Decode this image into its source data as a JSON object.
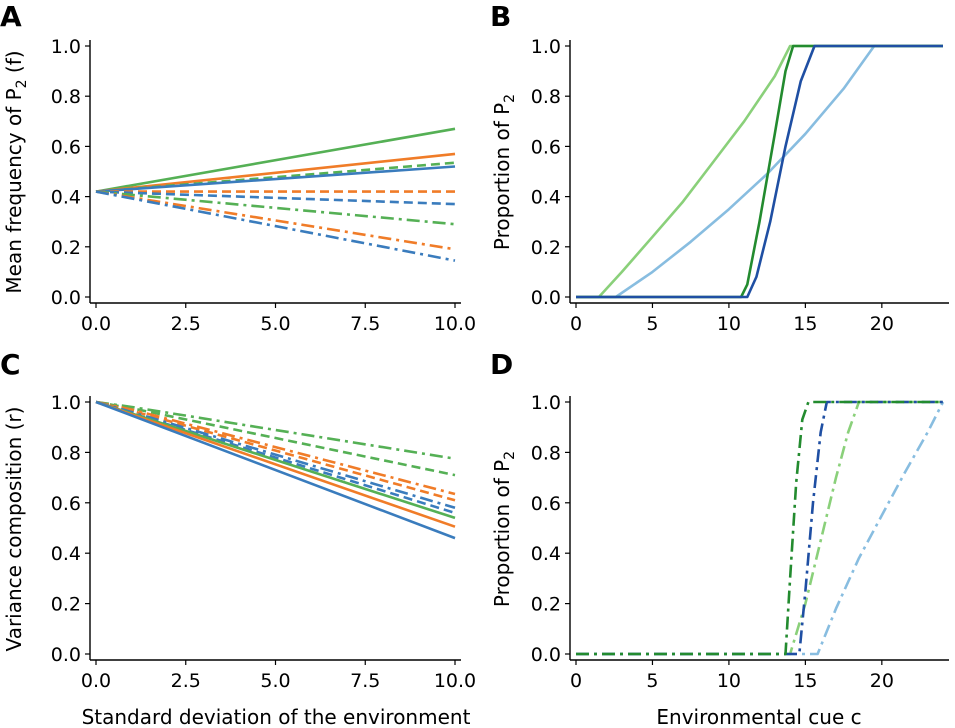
{
  "colors": {
    "blue": "#3a7cbd",
    "orange": "#f07c28",
    "green": "#55b055",
    "dark_blue": "#1f4fa3",
    "dark_green": "#238b2f",
    "light_green": "#8ad07a",
    "light_blue": "#88bde0"
  },
  "chart_data": [
    {
      "panel": "A",
      "type": "line",
      "ylabel": "Mean frequency of P",
      "ylabel_sub": "2",
      "ylabel_tail": " (f)",
      "xlabel": "",
      "xlim": [
        0,
        10
      ],
      "ylim": [
        0,
        1
      ],
      "xticks": [
        "0.0",
        "2.5",
        "5.0",
        "7.5",
        "10.0"
      ],
      "yticks": [
        "0.0",
        "0.2",
        "0.4",
        "0.6",
        "0.8",
        "1.0"
      ],
      "series": [
        {
          "name": "green solid",
          "color": "green",
          "dash": "solid",
          "x": [
            0,
            10
          ],
          "y": [
            0.42,
            0.67
          ]
        },
        {
          "name": "orange solid",
          "color": "orange",
          "dash": "solid",
          "x": [
            0,
            10
          ],
          "y": [
            0.42,
            0.57
          ]
        },
        {
          "name": "green dashed",
          "color": "green",
          "dash": "dashed",
          "x": [
            0,
            10
          ],
          "y": [
            0.42,
            0.535
          ]
        },
        {
          "name": "blue solid",
          "color": "blue",
          "dash": "solid",
          "x": [
            0,
            10
          ],
          "y": [
            0.42,
            0.52
          ]
        },
        {
          "name": "orange dashed",
          "color": "orange",
          "dash": "dashed",
          "x": [
            0,
            10
          ],
          "y": [
            0.42,
            0.42
          ]
        },
        {
          "name": "blue dashed",
          "color": "blue",
          "dash": "dashed",
          "x": [
            0,
            10
          ],
          "y": [
            0.42,
            0.37
          ]
        },
        {
          "name": "green dashdot",
          "color": "green",
          "dash": "dashdot",
          "x": [
            0,
            10
          ],
          "y": [
            0.42,
            0.29
          ]
        },
        {
          "name": "orange dashdot",
          "color": "orange",
          "dash": "dashdot",
          "x": [
            0,
            10
          ],
          "y": [
            0.42,
            0.19
          ]
        },
        {
          "name": "blue dashdot",
          "color": "blue",
          "dash": "dashdot",
          "x": [
            0,
            10
          ],
          "y": [
            0.42,
            0.145
          ]
        }
      ]
    },
    {
      "panel": "B",
      "type": "line",
      "ylabel": "Proportion of P",
      "ylabel_sub": "2",
      "ylabel_tail": "",
      "xlabel": "",
      "xlim": [
        0,
        24
      ],
      "ylim": [
        0,
        1
      ],
      "xticks": [
        "0",
        "5",
        "10",
        "15",
        "20"
      ],
      "yticks": [
        "0.0",
        "0.2",
        "0.4",
        "0.6",
        "0.8",
        "1.0"
      ],
      "series": [
        {
          "name": "light blue solid",
          "color": "light_blue",
          "dash": "solid",
          "x": [
            0,
            2.6,
            5,
            7.5,
            10,
            12.5,
            15,
            17.5,
            19.5,
            24
          ],
          "y": [
            0,
            0,
            0.1,
            0.22,
            0.35,
            0.49,
            0.65,
            0.83,
            1,
            1
          ]
        },
        {
          "name": "light green solid",
          "color": "light_green",
          "dash": "solid",
          "x": [
            0,
            1.5,
            3,
            5,
            7,
            9,
            11,
            13,
            14,
            24
          ],
          "y": [
            0,
            0,
            0.1,
            0.24,
            0.38,
            0.54,
            0.7,
            0.88,
            1,
            1
          ]
        },
        {
          "name": "dark green solid",
          "color": "dark_green",
          "dash": "solid",
          "x": [
            0,
            10.8,
            11.2,
            12,
            13,
            13.7,
            14.2,
            24
          ],
          "y": [
            0,
            0,
            0.05,
            0.3,
            0.65,
            0.9,
            1,
            1
          ]
        },
        {
          "name": "dark blue solid",
          "color": "dark_blue",
          "dash": "solid",
          "x": [
            0,
            11.2,
            11.8,
            12.7,
            13.7,
            14.7,
            15.6,
            24
          ],
          "y": [
            0,
            0,
            0.08,
            0.3,
            0.6,
            0.86,
            1,
            1
          ]
        }
      ]
    },
    {
      "panel": "C",
      "type": "line",
      "ylabel": "Variance composition (r)",
      "ylabel_sub": "",
      "ylabel_tail": "",
      "xlabel": "Standard deviation of the environment",
      "xlim": [
        0,
        10
      ],
      "ylim": [
        0,
        1
      ],
      "xticks": [
        "0.0",
        "2.5",
        "5.0",
        "7.5",
        "10.0"
      ],
      "yticks": [
        "0.0",
        "0.2",
        "0.4",
        "0.6",
        "0.8",
        "1.0"
      ],
      "series": [
        {
          "name": "green dashdot",
          "color": "green",
          "dash": "dashdot",
          "x": [
            0,
            1,
            10
          ],
          "y": [
            1,
            0.98,
            0.775
          ]
        },
        {
          "name": "green dashed",
          "color": "green",
          "dash": "dashed",
          "x": [
            0,
            1,
            10
          ],
          "y": [
            1,
            0.975,
            0.71
          ]
        },
        {
          "name": "orange dashdot",
          "color": "orange",
          "dash": "dashdot",
          "x": [
            0,
            1,
            10
          ],
          "y": [
            1,
            0.97,
            0.635
          ]
        },
        {
          "name": "orange dashed",
          "color": "orange",
          "dash": "dashed",
          "x": [
            0,
            1,
            10
          ],
          "y": [
            1,
            0.965,
            0.61
          ]
        },
        {
          "name": "blue dashdot",
          "color": "blue",
          "dash": "dashdot",
          "x": [
            0,
            1,
            10
          ],
          "y": [
            1,
            0.96,
            0.58
          ]
        },
        {
          "name": "blue dashed",
          "color": "blue",
          "dash": "dashed",
          "x": [
            0,
            1,
            10
          ],
          "y": [
            1,
            0.955,
            0.56
          ]
        },
        {
          "name": "green solid",
          "color": "green",
          "dash": "solid",
          "x": [
            0,
            10
          ],
          "y": [
            1,
            0.54
          ]
        },
        {
          "name": "orange solid",
          "color": "orange",
          "dash": "solid",
          "x": [
            0,
            10
          ],
          "y": [
            1,
            0.505
          ]
        },
        {
          "name": "blue solid",
          "color": "blue",
          "dash": "solid",
          "x": [
            0,
            10
          ],
          "y": [
            1,
            0.46
          ]
        }
      ]
    },
    {
      "panel": "D",
      "type": "line",
      "ylabel": "Proportion of P",
      "ylabel_sub": "2",
      "ylabel_tail": "",
      "xlabel": "Environmental cue c",
      "xlim": [
        0,
        24
      ],
      "ylim": [
        0,
        1
      ],
      "xticks": [
        "0",
        "5",
        "10",
        "15",
        "20"
      ],
      "yticks": [
        "0.0",
        "0.2",
        "0.4",
        "0.6",
        "0.8",
        "1.0"
      ],
      "series": [
        {
          "name": "light blue dashdot",
          "color": "light_blue",
          "dash": "dashdot",
          "x": [
            0,
            15.8,
            17,
            18.5,
            20,
            21.5,
            23,
            24
          ],
          "y": [
            0,
            0,
            0.18,
            0.38,
            0.55,
            0.72,
            0.88,
            1
          ]
        },
        {
          "name": "light green dashdot",
          "color": "light_green",
          "dash": "dashdot",
          "x": [
            0,
            14,
            15,
            16,
            17,
            17.8,
            18.5,
            24
          ],
          "y": [
            0,
            0,
            0.2,
            0.45,
            0.7,
            0.88,
            1,
            1
          ]
        },
        {
          "name": "dark blue dashdot",
          "color": "dark_blue",
          "dash": "dashdot",
          "x": [
            0,
            14.6,
            15,
            15.5,
            16,
            16.4,
            24
          ],
          "y": [
            0,
            0,
            0.25,
            0.6,
            0.88,
            1,
            1
          ]
        },
        {
          "name": "dark green dashdot",
          "color": "dark_green",
          "dash": "dashdot",
          "x": [
            0,
            13.7,
            14,
            14.4,
            14.8,
            15.2,
            24
          ],
          "y": [
            0,
            0,
            0.3,
            0.68,
            0.93,
            1,
            1
          ]
        }
      ]
    }
  ]
}
